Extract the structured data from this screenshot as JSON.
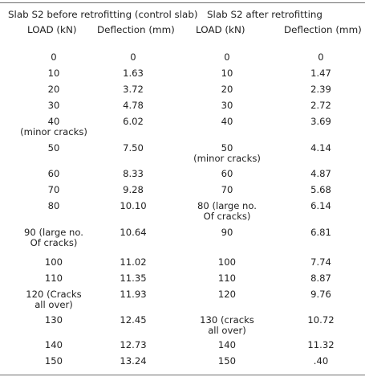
{
  "table": {
    "group_headers": {
      "left": "Slab S2 before retrofitting (control slab)",
      "right": "Slab S2 after retrofitting"
    },
    "column_headers": {
      "load_left": "LOAD (kN)",
      "deflection_left": "Deflection (mm)",
      "load_right": "LOAD (kN)",
      "deflection_right": "Deflection (mm)"
    },
    "rows": [
      {
        "load_before": "0",
        "deflection_before": "0",
        "load_after": "0",
        "deflection_after": "0"
      },
      {
        "load_before": "10",
        "deflection_before": "1.63",
        "load_after": "10",
        "deflection_after": "1.47"
      },
      {
        "load_before": "20",
        "deflection_before": "3.72",
        "load_after": "20",
        "deflection_after": "2.39"
      },
      {
        "load_before": "30",
        "deflection_before": "4.78",
        "load_after": "30",
        "deflection_after": "2.72"
      },
      {
        "load_before": "40\n(minor cracks)",
        "deflection_before": "6.02",
        "load_after": "40",
        "deflection_after": "3.69"
      },
      {
        "load_before": "50",
        "deflection_before": "7.50",
        "load_after": "50\n(minor cracks)",
        "deflection_after": "4.14"
      },
      {
        "load_before": "60",
        "deflection_before": "8.33",
        "load_after": "60",
        "deflection_after": "4.87"
      },
      {
        "load_before": "70",
        "deflection_before": "9.28",
        "load_after": "70",
        "deflection_after": "5.68"
      },
      {
        "load_before": "80",
        "deflection_before": "10.10",
        "load_after": "80 (large no.\nOf cracks)",
        "deflection_after": "6.14"
      },
      {
        "load_before": "90 (large no.\nOf cracks)",
        "deflection_before": "10.64",
        "load_after": "90",
        "deflection_after": "6.81"
      },
      {
        "load_before": "100",
        "deflection_before": "11.02",
        "load_after": "100",
        "deflection_after": "7.74"
      },
      {
        "load_before": "110",
        "deflection_before": "11.35",
        "load_after": "110",
        "deflection_after": "8.87"
      },
      {
        "load_before": "120 (Cracks\nall over)",
        "deflection_before": "11.93",
        "load_after": "120",
        "deflection_after": "9.76"
      },
      {
        "load_before": "130",
        "deflection_before": "12.45",
        "load_after": "130 (cracks\nall over)",
        "deflection_after": "10.72"
      },
      {
        "load_before": "140",
        "deflection_before": "12.73",
        "load_after": "140",
        "deflection_after": "11.32"
      },
      {
        "load_before": "150",
        "deflection_before": "13.24",
        "load_after": "150",
        "deflection_after": ".40"
      }
    ]
  }
}
